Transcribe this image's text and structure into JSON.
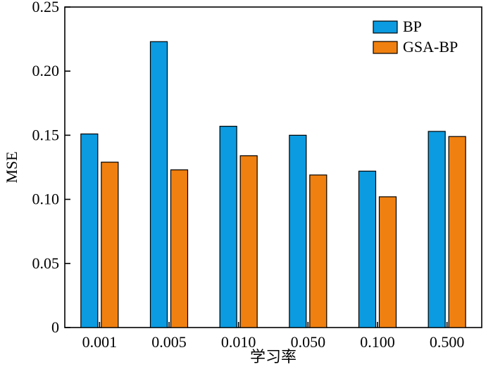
{
  "chart_data": {
    "type": "bar",
    "title": "",
    "xlabel": "学习率",
    "ylabel": "MSE",
    "categories": [
      "0.001",
      "0.005",
      "0.010",
      "0.050",
      "0.100",
      "0.500"
    ],
    "series": [
      {
        "name": "BP",
        "color": "#0B9BE0",
        "values": [
          0.151,
          0.223,
          0.157,
          0.15,
          0.122,
          0.153
        ]
      },
      {
        "name": "GSA-BP",
        "color": "#F08010",
        "values": [
          0.129,
          0.123,
          0.134,
          0.119,
          0.102,
          0.149
        ]
      }
    ],
    "ylim": [
      0,
      0.25
    ],
    "yticks": [
      "0",
      "0.05",
      "0.10",
      "0.15",
      "0.20",
      "0.25"
    ],
    "legend_position": "top-right",
    "grid": false
  }
}
